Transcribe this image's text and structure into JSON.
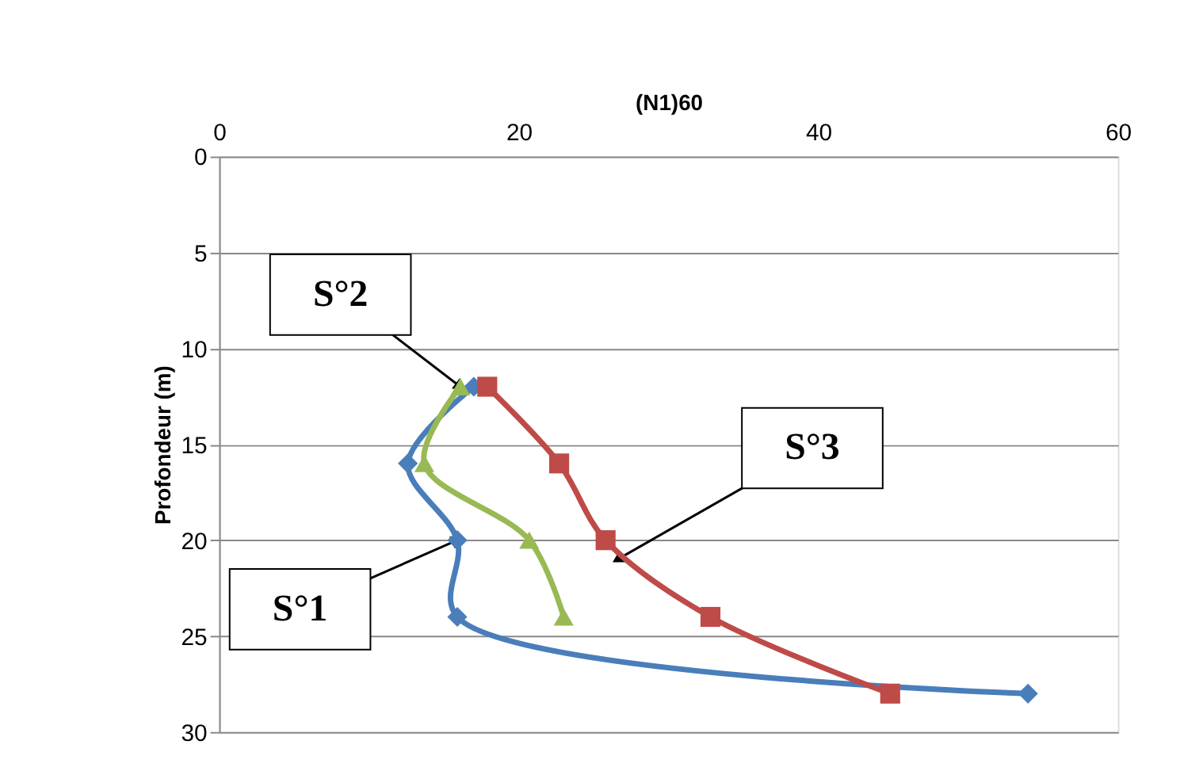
{
  "chart_data": {
    "type": "line",
    "xlabel": "(N1)60",
    "ylabel": "Profondeur (m)",
    "xlim": [
      0,
      60
    ],
    "xticks": [
      0,
      20,
      40,
      60
    ],
    "ylim": [
      30,
      0
    ],
    "yticks": [
      0,
      5,
      10,
      15,
      20,
      25,
      30
    ],
    "grid": "y",
    "series": [
      {
        "color": "#4a7ebb",
        "marker": "diamond",
        "x": [
          17,
          12.6,
          15.9,
          15.9,
          54
        ],
        "values": [
          12,
          16,
          20,
          24,
          28
        ]
      },
      {
        "color": "#be4b48",
        "marker": "square",
        "x": [
          17.9,
          22.7,
          25.8,
          32.8,
          44.8
        ],
        "values": [
          12,
          16,
          20,
          24,
          28
        ]
      },
      {
        "color": "#98b954",
        "marker": "triangle",
        "x": [
          16.1,
          13.7,
          20.7,
          23
        ],
        "values": [
          12,
          16,
          20,
          24
        ]
      }
    ],
    "annotations": [
      {
        "text": "S°1",
        "x": 15.9,
        "y": 20
      },
      {
        "text": "S°2",
        "x": 16.1,
        "y": 12
      },
      {
        "text": "S°3",
        "x": 26.6,
        "y": 21
      }
    ]
  }
}
